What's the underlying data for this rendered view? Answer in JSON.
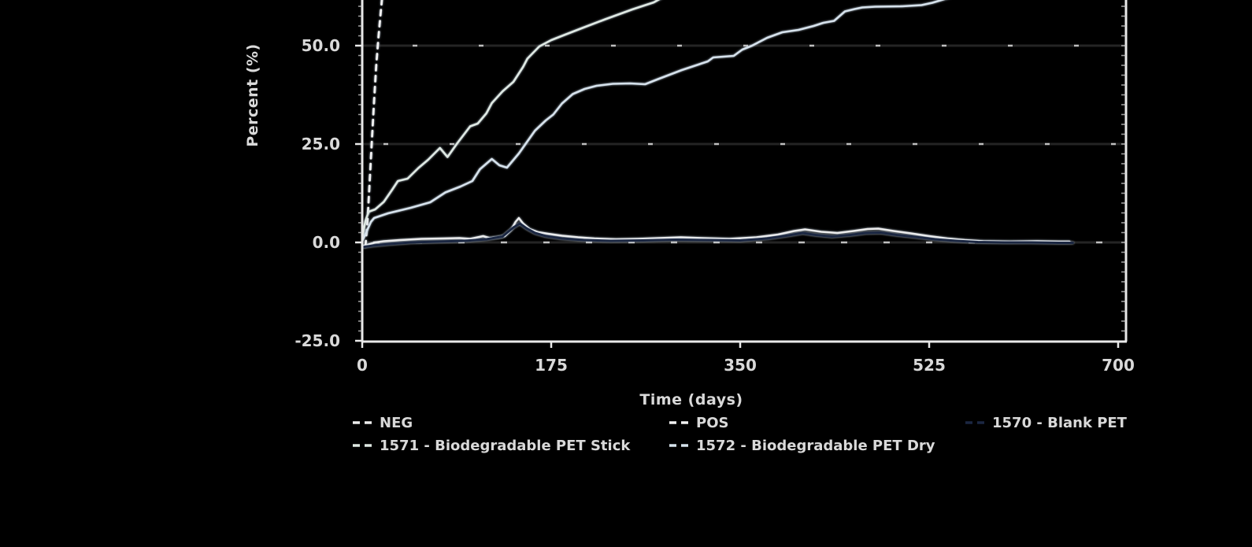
{
  "chart_data": {
    "type": "line",
    "title": "",
    "xlabel": "Time (days)",
    "ylabel": "Percent (%)",
    "x_ticks": [
      0,
      175,
      350,
      525,
      700
    ],
    "x_tick_labels": [
      "0",
      "175",
      "350",
      "525",
      "700"
    ],
    "y_ticks": [
      50,
      25,
      0,
      -25
    ],
    "y_tick_labels": [
      "50.0",
      "25.0",
      "0.0",
      "-25.0"
    ],
    "xlim": [
      0,
      707
    ],
    "ylim_visible": [
      -25,
      61.6
    ],
    "grid": "horizontal-dark-with-light-dashes",
    "legend_position": "bottom",
    "background_color": "#000000",
    "axis_color": "#e9e9e9",
    "gridline_color": "#242424",
    "gridline_dash_color": "#d9d9d9",
    "text_color": "#d9d9d9",
    "series": [
      {
        "name": "NEG",
        "color": "#ececec",
        "dash": "solid",
        "width": 2.5,
        "points": [
          [
            0,
            -1
          ],
          [
            5,
            -0.6
          ],
          [
            12,
            0
          ],
          [
            20,
            0.3
          ],
          [
            35,
            0.6
          ],
          [
            55,
            0.9
          ],
          [
            75,
            1.0
          ],
          [
            90,
            1.1
          ],
          [
            100,
            0.9
          ],
          [
            112,
            1.6
          ],
          [
            118,
            1.1
          ],
          [
            125,
            1.3
          ],
          [
            132,
            1.6
          ],
          [
            138,
            3.2
          ],
          [
            142,
            5.2
          ],
          [
            145,
            6.2
          ],
          [
            149,
            4.8
          ],
          [
            155,
            3.4
          ],
          [
            163,
            2.6
          ],
          [
            172,
            2.2
          ],
          [
            185,
            1.7
          ],
          [
            200,
            1.3
          ],
          [
            215,
            1.0
          ],
          [
            235,
            0.8
          ],
          [
            255,
            0.9
          ],
          [
            275,
            1.1
          ],
          [
            295,
            1.3
          ],
          [
            315,
            1.1
          ],
          [
            340,
            0.9
          ],
          [
            365,
            1.3
          ],
          [
            385,
            2.0
          ],
          [
            400,
            2.9
          ],
          [
            410,
            3.3
          ],
          [
            425,
            2.7
          ],
          [
            440,
            2.4
          ],
          [
            455,
            2.9
          ],
          [
            468,
            3.4
          ],
          [
            478,
            3.5
          ],
          [
            492,
            2.9
          ],
          [
            508,
            2.3
          ],
          [
            525,
            1.6
          ],
          [
            542,
            1.0
          ],
          [
            558,
            0.6
          ],
          [
            575,
            0.3
          ],
          [
            600,
            0.2
          ],
          [
            625,
            0.3
          ],
          [
            645,
            0.2
          ],
          [
            655,
            0.2
          ]
        ]
      },
      {
        "name": "POS",
        "color": "#f2f2f2",
        "dash": "dashed",
        "width": 2.8,
        "points": [
          [
            3,
            -1
          ],
          [
            5,
            6
          ],
          [
            7,
            16
          ],
          [
            9,
            26
          ],
          [
            11,
            36
          ],
          [
            13,
            45
          ],
          [
            15,
            52
          ],
          [
            17,
            58
          ],
          [
            19,
            64
          ]
        ]
      },
      {
        "name": "1570 - Blank PET",
        "color": "#1b2742",
        "dash": "solid",
        "width": 3,
        "points": [
          [
            0,
            -1.2
          ],
          [
            10,
            -0.8
          ],
          [
            25,
            -0.4
          ],
          [
            45,
            0
          ],
          [
            70,
            0.2
          ],
          [
            95,
            0.4
          ],
          [
            115,
            0.8
          ],
          [
            130,
            1.5
          ],
          [
            140,
            3.8
          ],
          [
            146,
            4.8
          ],
          [
            152,
            3.6
          ],
          [
            160,
            2.4
          ],
          [
            170,
            1.6
          ],
          [
            185,
            1.0
          ],
          [
            205,
            0.6
          ],
          [
            230,
            0.4
          ],
          [
            260,
            0.5
          ],
          [
            290,
            0.7
          ],
          [
            320,
            0.6
          ],
          [
            350,
            0.5
          ],
          [
            375,
            1.0
          ],
          [
            395,
            1.8
          ],
          [
            408,
            2.4
          ],
          [
            420,
            1.9
          ],
          [
            435,
            1.5
          ],
          [
            452,
            1.9
          ],
          [
            466,
            2.4
          ],
          [
            480,
            2.5
          ],
          [
            495,
            1.9
          ],
          [
            512,
            1.4
          ],
          [
            530,
            0.8
          ],
          [
            550,
            0.4
          ],
          [
            570,
            0.1
          ],
          [
            595,
            0
          ],
          [
            620,
            0
          ],
          [
            645,
            -0.1
          ],
          [
            658,
            -0.1
          ]
        ]
      },
      {
        "name": "1571 - Biodegradable PET Stick",
        "color": "#dfe9e3",
        "dash": "solid",
        "width": 2.6,
        "points": [
          [
            0,
            1
          ],
          [
            3,
            5.5
          ],
          [
            6,
            7.8
          ],
          [
            12,
            8.4
          ],
          [
            20,
            10.3
          ],
          [
            28,
            13.5
          ],
          [
            33,
            15.6
          ],
          [
            42,
            16.2
          ],
          [
            52,
            18.9
          ],
          [
            61,
            21.0
          ],
          [
            72,
            24.0
          ],
          [
            79,
            21.7
          ],
          [
            88,
            25.2
          ],
          [
            100,
            29.5
          ],
          [
            107,
            30.2
          ],
          [
            115,
            32.8
          ],
          [
            120,
            35.4
          ],
          [
            130,
            38.4
          ],
          [
            140,
            40.8
          ],
          [
            149,
            44.6
          ],
          [
            153,
            46.7
          ],
          [
            164,
            49.8
          ],
          [
            175,
            51.4
          ],
          [
            188,
            52.8
          ],
          [
            203,
            54.4
          ],
          [
            225,
            56.7
          ],
          [
            250,
            59.2
          ],
          [
            270,
            61.0
          ],
          [
            283,
            63.0
          ]
        ]
      },
      {
        "name": "1572 - Biodegradable PET Dry",
        "color": "#d6e2ec",
        "dash": "solid",
        "width": 2.6,
        "points": [
          [
            0,
            0.3
          ],
          [
            8,
            5.2
          ],
          [
            11,
            6.2
          ],
          [
            24,
            7.4
          ],
          [
            45,
            8.8
          ],
          [
            63,
            10.2
          ],
          [
            77,
            12.7
          ],
          [
            91,
            14.2
          ],
          [
            102,
            15.6
          ],
          [
            109,
            18.6
          ],
          [
            120,
            21.2
          ],
          [
            127,
            19.6
          ],
          [
            134,
            19.0
          ],
          [
            145,
            22.6
          ],
          [
            160,
            28.4
          ],
          [
            170,
            31.0
          ],
          [
            177,
            32.5
          ],
          [
            185,
            35.3
          ],
          [
            195,
            37.7
          ],
          [
            206,
            39.0
          ],
          [
            217,
            39.8
          ],
          [
            232,
            40.3
          ],
          [
            248,
            40.4
          ],
          [
            262,
            40.2
          ],
          [
            274,
            41.5
          ],
          [
            296,
            43.8
          ],
          [
            320,
            46.0
          ],
          [
            325,
            47.0
          ],
          [
            344,
            47.4
          ],
          [
            352,
            49.0
          ],
          [
            361,
            50.0
          ],
          [
            375,
            52.0
          ],
          [
            389,
            53.4
          ],
          [
            404,
            54.0
          ],
          [
            418,
            55.0
          ],
          [
            427,
            55.8
          ],
          [
            437,
            56.3
          ],
          [
            447,
            58.7
          ],
          [
            456,
            59.3
          ],
          [
            463,
            59.7
          ],
          [
            475,
            59.9
          ],
          [
            500,
            60.0
          ],
          [
            518,
            60.3
          ],
          [
            528,
            60.9
          ],
          [
            545,
            62.3
          ]
        ]
      }
    ],
    "legend": {
      "rows": [
        [
          "NEG",
          "POS",
          "1570 - Blank PET"
        ],
        [
          "1571 - Biodegradable PET Stick",
          "1572 - Biodegradable PET Dry"
        ]
      ]
    }
  }
}
